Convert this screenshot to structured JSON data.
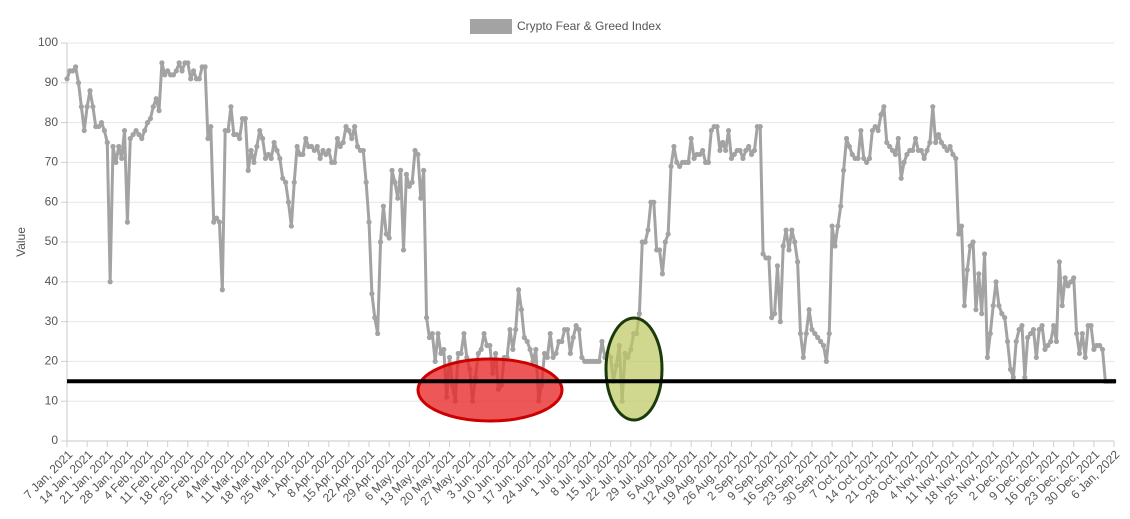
{
  "chart_data": {
    "type": "line",
    "y_label": "Value",
    "ylim": [
      0,
      100
    ],
    "yticks": [
      0,
      10,
      20,
      30,
      40,
      50,
      60,
      70,
      80,
      90,
      100
    ],
    "grid": true,
    "legend": "top",
    "reference_line": {
      "value": 15,
      "color": "#000000"
    },
    "categories": [
      "7 Jan, 2021",
      null,
      null,
      null,
      null,
      null,
      null,
      "14 Jan, 2021",
      null,
      null,
      null,
      null,
      null,
      null,
      "21 Jan, 2021",
      null,
      null,
      null,
      null,
      null,
      null,
      "28 Jan, 2021",
      null,
      null,
      null,
      null,
      null,
      null,
      "4 Feb, 2021",
      null,
      null,
      null,
      null,
      null,
      null,
      "11 Feb, 2021",
      null,
      null,
      null,
      null,
      null,
      null,
      "18 Feb, 2021",
      null,
      null,
      null,
      null,
      null,
      null,
      "25 Feb, 2021",
      null,
      null,
      null,
      null,
      null,
      null,
      "4 Mar, 2021",
      null,
      null,
      null,
      null,
      null,
      null,
      "11 Mar, 2021",
      null,
      null,
      null,
      null,
      null,
      null,
      "18 Mar, 2021",
      null,
      null,
      null,
      null,
      null,
      null,
      "25 Mar, 2021",
      null,
      null,
      null,
      null,
      null,
      null,
      "1 Apr, 2021",
      null,
      null,
      null,
      null,
      null,
      null,
      "8 Apr, 2021",
      null,
      null,
      null,
      null,
      null,
      null,
      "15 Apr, 2021",
      null,
      null,
      null,
      null,
      null,
      null,
      "22 Apr, 2021",
      null,
      null,
      null,
      null,
      null,
      null,
      "29 Apr, 2021",
      null,
      null,
      null,
      null,
      null,
      null,
      "6 May, 2021",
      null,
      null,
      null,
      null,
      null,
      null,
      "13 May, 2021",
      null,
      null,
      null,
      null,
      null,
      null,
      "20 May, 2021",
      null,
      null,
      null,
      null,
      null,
      null,
      "27 May, 2021",
      null,
      null,
      null,
      null,
      null,
      null,
      "3 Jun, 2021",
      null,
      null,
      null,
      null,
      null,
      null,
      "10 Jun, 2021",
      null,
      null,
      null,
      null,
      null,
      null,
      "17 Jun, 2021",
      null,
      null,
      null,
      null,
      null,
      null,
      "24 Jun, 2021",
      null,
      null,
      null,
      null,
      null,
      null,
      "1 Jul, 2021",
      null,
      null,
      null,
      null,
      null,
      null,
      "8 Jul, 2021",
      null,
      null,
      null,
      null,
      null,
      null,
      "15 Jul, 2021",
      null,
      null,
      null,
      null,
      null,
      null,
      "22 Jul, 2021",
      null,
      null,
      null,
      null,
      null,
      null,
      "29 Jul, 2021",
      null,
      null,
      null,
      null,
      null,
      null,
      "5 Aug, 2021",
      null,
      null,
      null,
      null,
      null,
      null,
      "12 Aug, 2021",
      null,
      null,
      null,
      null,
      null,
      null,
      "19 Aug, 2021",
      null,
      null,
      null,
      null,
      null,
      null,
      "26 Aug, 2021",
      null,
      null,
      null,
      null,
      null,
      null,
      "2 Sep, 2021",
      null,
      null,
      null,
      null,
      null,
      null,
      "9 Sep, 2021",
      null,
      null,
      null,
      null,
      null,
      null,
      "16 Sep, 2021",
      null,
      null,
      null,
      null,
      null,
      null,
      "23 Sep, 2021",
      null,
      null,
      null,
      null,
      null,
      null,
      "30 Sep, 2021",
      null,
      null,
      null,
      null,
      null,
      null,
      "7 Oct, 2021",
      null,
      null,
      null,
      null,
      null,
      null,
      "14 Oct, 2021",
      null,
      null,
      null,
      null,
      null,
      null,
      "21 Oct, 2021",
      null,
      null,
      null,
      null,
      null,
      null,
      "28 Oct, 2021",
      null,
      null,
      null,
      null,
      null,
      null,
      "4 Nov, 2021",
      null,
      null,
      null,
      null,
      null,
      null,
      "11 Nov, 2021",
      null,
      null,
      null,
      null,
      null,
      null,
      "18 Nov, 2021",
      null,
      null,
      null,
      null,
      null,
      null,
      "25 Nov, 2021",
      null,
      null,
      null,
      null,
      null,
      null,
      "2 Dec, 2021",
      null,
      null,
      null,
      null,
      null,
      null,
      "9 Dec, 2021",
      null,
      null,
      null,
      null,
      null,
      null,
      "16 Dec, 2021",
      null,
      null,
      null,
      null,
      null,
      null,
      "23 Dec, 2021",
      null,
      null,
      null,
      null,
      null,
      null,
      "30 Dec, 2021",
      null,
      null,
      null,
      null,
      null,
      null,
      "6 Jan, 2022"
    ],
    "series": [
      {
        "name": "Crypto Fear & Greed Index",
        "color": "#a3a3a3",
        "values": [
          91,
          93,
          93,
          94,
          90,
          84,
          78,
          84,
          88,
          84,
          79,
          79,
          80,
          78,
          75,
          40,
          74,
          70,
          74,
          71,
          78,
          55,
          76,
          77,
          78,
          77,
          76,
          78,
          80,
          81,
          84,
          86,
          83,
          95,
          92,
          93,
          92,
          92,
          93,
          95,
          93,
          95,
          95,
          91,
          93,
          91,
          91,
          94,
          94,
          76,
          79,
          55,
          56,
          55,
          38,
          78,
          78,
          84,
          77,
          77,
          76,
          81,
          81,
          68,
          73,
          70,
          74,
          78,
          76,
          71,
          72,
          71,
          75,
          73,
          71,
          66,
          65,
          60,
          54,
          65,
          74,
          72,
          72,
          76,
          74,
          74,
          73,
          74,
          71,
          73,
          72,
          73,
          70,
          70,
          76,
          74,
          75,
          79,
          78,
          76,
          79,
          74,
          73,
          73,
          65,
          55,
          37,
          31,
          27,
          50,
          59,
          52,
          51,
          68,
          65,
          61,
          68,
          48,
          67,
          64,
          65,
          73,
          72,
          61,
          68,
          31,
          26,
          27,
          20,
          27,
          22,
          23,
          11,
          21,
          14,
          10,
          22,
          22,
          27,
          21,
          18,
          10,
          16,
          22,
          23,
          27,
          24,
          24,
          17,
          22,
          13,
          14,
          21,
          21,
          28,
          23,
          28,
          38,
          33,
          26,
          25,
          23,
          20,
          23,
          10,
          14,
          22,
          21,
          27,
          21,
          22,
          25,
          25,
          28,
          28,
          22,
          26,
          29,
          28,
          21,
          20,
          20,
          20,
          20,
          20,
          20,
          25,
          21,
          22,
          21,
          15,
          19,
          24,
          10,
          22,
          21,
          23,
          27,
          27,
          32,
          50,
          50,
          53,
          60,
          60,
          48,
          48,
          42,
          50,
          52,
          69,
          74,
          70,
          69,
          70,
          70,
          70,
          76,
          71,
          72,
          72,
          73,
          70,
          70,
          78,
          79,
          79,
          73,
          75,
          73,
          78,
          71,
          72,
          73,
          73,
          71,
          73,
          74,
          72,
          73,
          79,
          79,
          47,
          46,
          46,
          31,
          32,
          44,
          30,
          49,
          53,
          48,
          53,
          50,
          45,
          27,
          21,
          27,
          33,
          28,
          27,
          26,
          25,
          24,
          20,
          27,
          54,
          49,
          54,
          59,
          68,
          76,
          74,
          72,
          71,
          71,
          78,
          71,
          70,
          71,
          78,
          79,
          78,
          82,
          84,
          75,
          74,
          73,
          72,
          76,
          66,
          70,
          72,
          73,
          73,
          76,
          73,
          73,
          71,
          73,
          75,
          84,
          75,
          77,
          75,
          74,
          73,
          74,
          72,
          71,
          52,
          54,
          34,
          43,
          49,
          50,
          33,
          42,
          32,
          47,
          21,
          27,
          34,
          40,
          34,
          32,
          31,
          25,
          18,
          16,
          25,
          28,
          29,
          16,
          26,
          27,
          28,
          21,
          28,
          29,
          23,
          24,
          25,
          29,
          25,
          45,
          34,
          41,
          39,
          40,
          41,
          27,
          22,
          27,
          21,
          29,
          29,
          23,
          24,
          24,
          23,
          15,
          15,
          15,
          15
        ]
      }
    ]
  }
}
